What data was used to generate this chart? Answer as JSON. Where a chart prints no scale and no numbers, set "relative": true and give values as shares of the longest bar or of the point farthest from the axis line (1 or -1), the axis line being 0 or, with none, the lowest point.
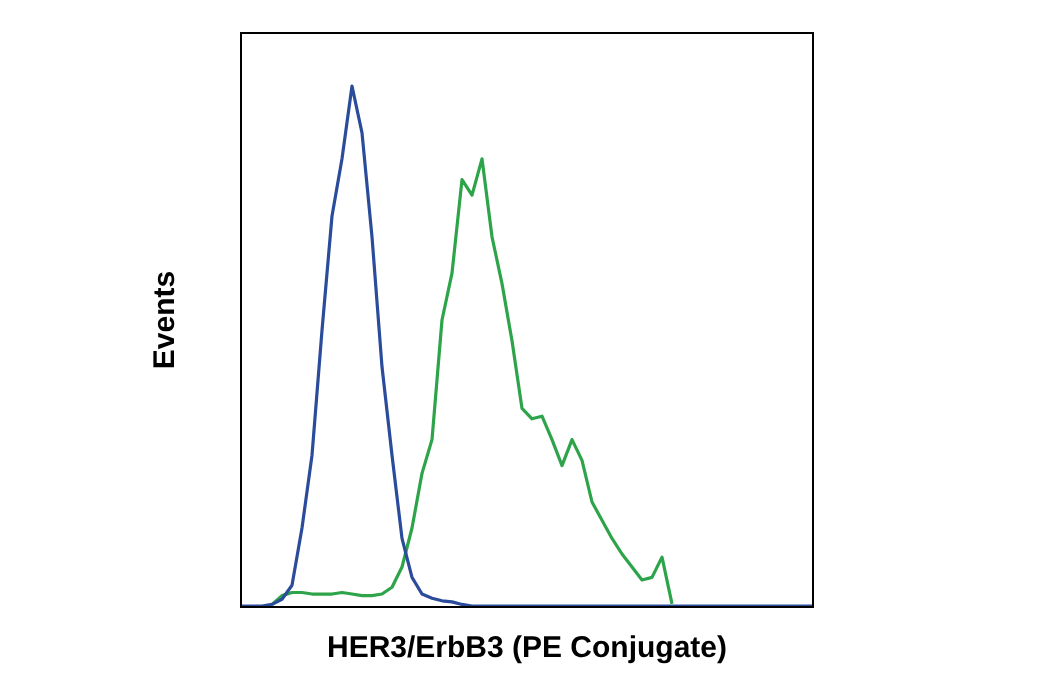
{
  "chart_data": {
    "type": "line",
    "xlabel": "HER3/ErbB3 (PE Conjugate)",
    "ylabel": "Events",
    "relative": true,
    "marker": "none",
    "legend": false,
    "categories": [
      null,
      null,
      null,
      null,
      null,
      null,
      null,
      null,
      null,
      null,
      null,
      null,
      null,
      null,
      null,
      null,
      null,
      null,
      null,
      null,
      null,
      null,
      null,
      null,
      null,
      null,
      null,
      null,
      null,
      null,
      null,
      null,
      null,
      null,
      null,
      null,
      null,
      null,
      null,
      null,
      null,
      null,
      null,
      null,
      null,
      null,
      null,
      null,
      null,
      null,
      null,
      null,
      null,
      null,
      null,
      null,
      null,
      null
    ],
    "series": [
      {
        "color": "#2b4c9b",
        "values": [
          0,
          0,
          0,
          0.003,
          0.013,
          0.04,
          0.15,
          0.29,
          0.53,
          0.75,
          0.86,
          1,
          0.91,
          0.71,
          0.46,
          0.29,
          0.13,
          0.055,
          0.023,
          0.015,
          0.01,
          0.008,
          0.003,
          0,
          0,
          0,
          0,
          0,
          0,
          0,
          0,
          0,
          0,
          0,
          0,
          0,
          0,
          0,
          0,
          0,
          0,
          0,
          0,
          0,
          0,
          0,
          0,
          0,
          0,
          0,
          0,
          0,
          0,
          0,
          0,
          0,
          0,
          0
        ]
      },
      {
        "color": "#2ea44a",
        "values": [
          null,
          null,
          null,
          0.003,
          0.02,
          0.026,
          0.026,
          0.023,
          0.023,
          0.023,
          0.026,
          0.023,
          0.02,
          0.02,
          0.023,
          0.036,
          0.075,
          0.15,
          0.255,
          0.32,
          0.55,
          0.64,
          0.82,
          0.79,
          0.86,
          0.71,
          0.62,
          0.51,
          0.38,
          0.36,
          0.365,
          0.32,
          0.27,
          0.32,
          0.28,
          0.2,
          0.165,
          0.13,
          0.1,
          0.075,
          0.05,
          0.055,
          0.094,
          0.004,
          null,
          null,
          null,
          null,
          null,
          null,
          null,
          null,
          null,
          null,
          null,
          null,
          null,
          null
        ]
      }
    ]
  }
}
